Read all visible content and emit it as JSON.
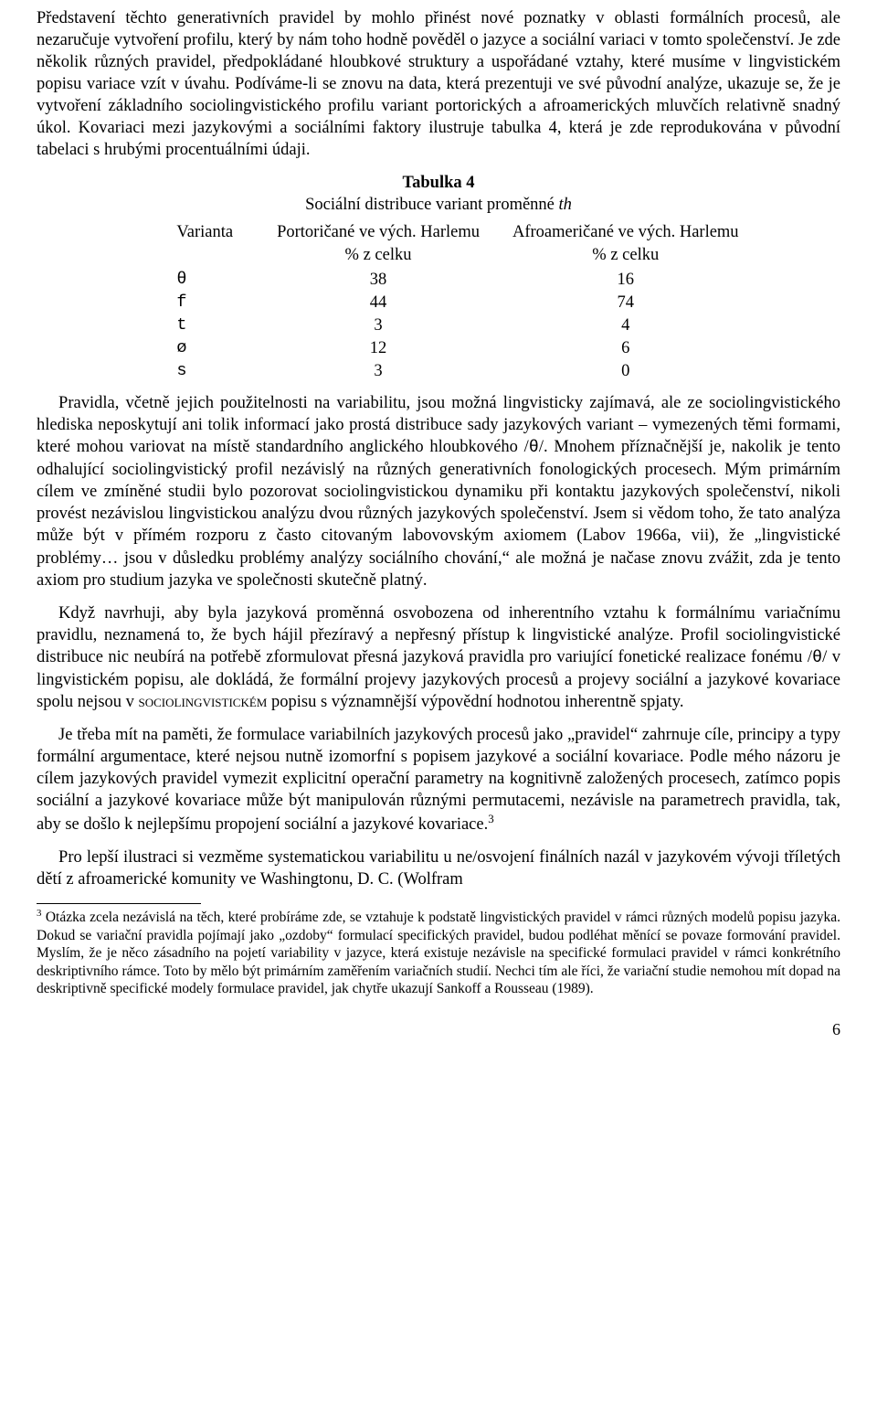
{
  "paragraphs": {
    "p1a": "Představení těchto generativních pravidel by mohlo přinést nové poznatky v oblasti formálních procesů, ale nezaručuje vytvoření profilu, který by nám toho hodně pověděl o jazyce a sociální variaci v tomto společenství. Je zde několik různých pravidel, předpokládané hloubkové struktury a uspořádané vztahy, které musíme v lingvistickém popisu variace vzít v úvahu. Podíváme-li se znovu na data, která prezentuji ve své původní analýze, ukazuje se, že je vytvoření základního sociolingvistického profilu variant portorických a afroamerických mluvčích relativně snadný úkol. Kovariaci mezi jazykovými a sociálními faktory ilustruje tabulka 4, která je zde reprodukována v původní tabelaci s hrubými procentuálními údaji.",
    "p2a": "Pravidla, včetně jejich použitelnosti na variabilitu, jsou možná lingvisticky zajímavá, ale ze sociolingvistického hlediska neposkytují ani tolik informací jako prostá distribuce sady jazykových variant – vymezených těmi formami, které mohou variovat na místě standardního anglického hloubkového /",
    "p2b": "/. Mnohem příznačnější je, nakolik je tento odhalující sociolingvistický profil nezávislý na různých generativních fonologických procesech. Mým primárním cílem ve zmíněné studii bylo pozorovat sociolingvistickou dynamiku při kontaktu jazykových společenství, nikoli provést nezávislou lingvistickou analýzu dvou různých jazykových společenství. Jsem si vědom toho, že tato analýza může být v přímém rozporu z často citovaným labovovským axiomem (Labov 1966a, vii), že „lingvistické problémy… jsou v důsledku problémy analýzy sociálního chování,“ ale možná je načase znovu zvážit, zda je tento axiom pro studium jazyka ve společnosti skutečně platný.",
    "p3a": "Když navrhuji, aby byla jazyková proměnná osvobozena od inherentního vztahu k formálnímu variačnímu pravidlu, neznamená to, že bych hájil přezíravý a nepřesný přístup k lingvistické analýze. Profil sociolingvistické distribuce nic neubírá na potřebě zformulovat přesná jazyková pravidla pro variující fonetické realizace fonému /",
    "p3b": "/ v lingvistickém popisu, ale dokládá, že formální projevy jazykových procesů a projevy sociální a jazykové kovariace spolu nejsou v ",
    "p3c": " popisu s významnější výpovědní hodnotou inherentně spjaty.",
    "p4": "Je třeba mít na paměti, že formulace variabilních jazykových procesů jako „pravidel“ zahrnuje cíle, principy a typy formální argumentace, které nejsou nutně izomorfní s popisem jazykové a sociální kovariace. Podle mého názoru je cílem jazykových pravidel vymezit explicitní operační parametry na kognitivně založených procesech, zatímco popis sociální a jazykové kovariace může být manipulován různými permutacemi, nezávisle na parametrech pravidla, tak, aby se došlo k nejlepšímu propojení sociální a jazykové kovariace.",
    "p5": "Pro lepší ilustraci si vezměme systematickou variabilitu u ne/osvojení finálních nazál v jazykovém vývoji tříletých dětí z afroamerické komunity ve Washingtonu, D. C. (Wolfram",
    "footnote": " Otázka zcela nezávislá na těch, které probíráme zde, se vztahuje k podstatě lingvistických pravidel v rámci různých modelů popisu jazyka. Dokud se variační pravidla pojímají jako „ozdoby“ formulací specifických pravidel, budou podléhat měnící se povaze formování pravidel. Myslím, že je něco zásadního na pojetí variability v jazyce, která existuje nezávisle na specifické formulaci pravidel v rámci konkrétního deskriptivního rámce. Toto by mělo být primárním zaměřením variačních studií. Nechci tím ale říci, že variační studie nemohou mít dopad na deskriptivně specifické modely formulace pravidel, jak chytře ukazují Sankoff a Rousseau (1989)."
  },
  "table": {
    "title": "Tabulka 4",
    "subtitle_a": "Sociální distribuce variant proměnné ",
    "subtitle_b": "th",
    "head_variant": "Varianta",
    "head_col1a": "Portoričané ve vých. Harlemu",
    "head_col2a": "Afroameričané ve vých. Harlemu",
    "head_sub": "% z celku",
    "rows": [
      {
        "v": "θ",
        "c1": "38",
        "c2": "16"
      },
      {
        "v": "f",
        "c1": "44",
        "c2": "74"
      },
      {
        "v": "t",
        "c1": "3",
        "c2": "4"
      },
      {
        "v": "ø",
        "c1": "12",
        "c2": "6"
      },
      {
        "v": "s",
        "c1": "3",
        "c2": "0"
      }
    ]
  },
  "tokens": {
    "theta": "θ",
    "smallcaps_word": "sociolingvistickém",
    "fn_ref": "3",
    "pagenum": "6"
  }
}
